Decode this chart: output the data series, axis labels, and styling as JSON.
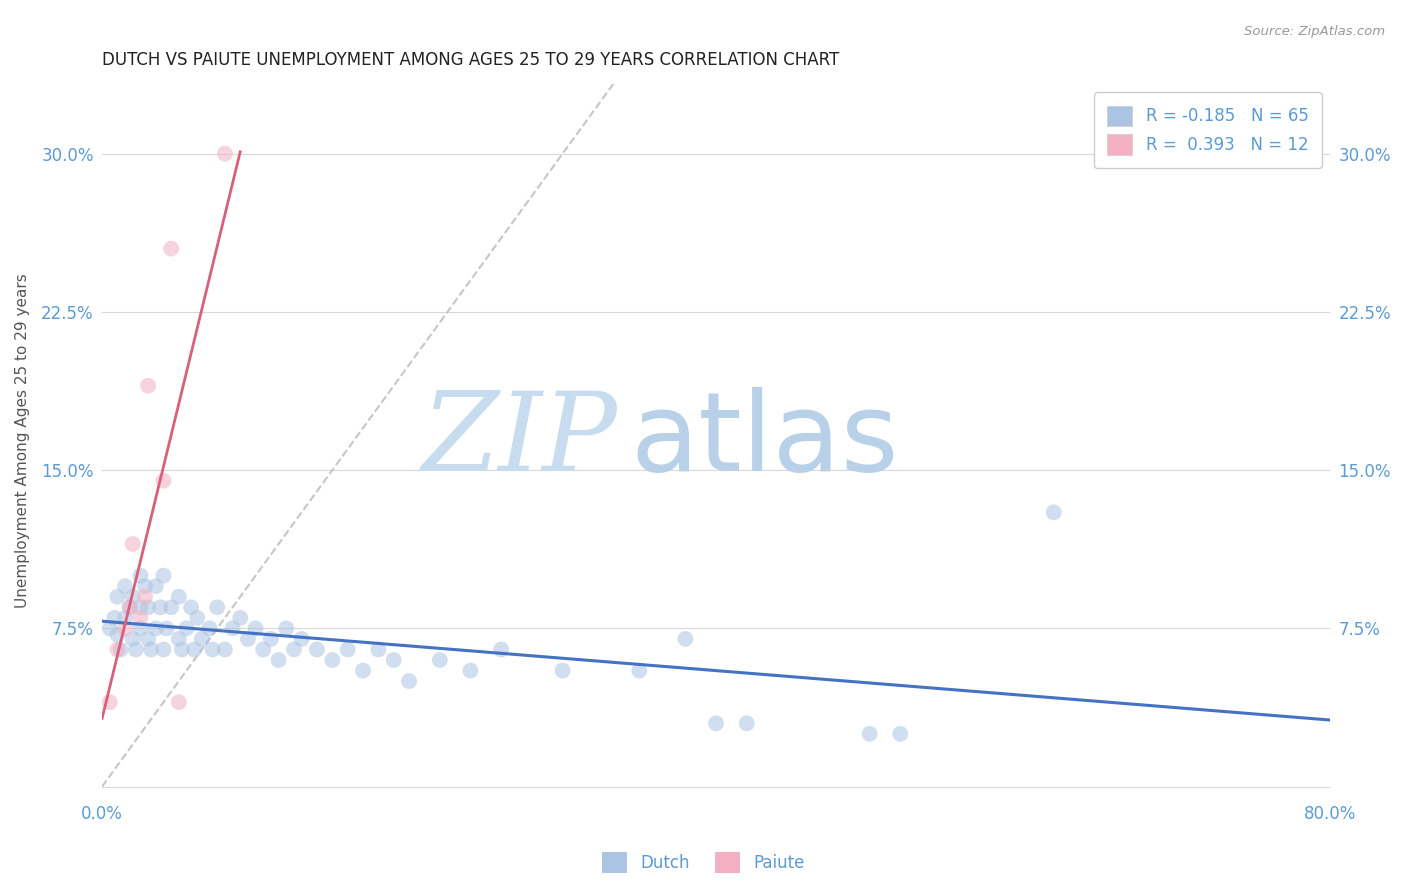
{
  "title": "DUTCH VS PAIUTE UNEMPLOYMENT AMONG AGES 25 TO 29 YEARS CORRELATION CHART",
  "source": "Source: ZipAtlas.com",
  "ylabel": "Unemployment Among Ages 25 to 29 years",
  "xlim": [
    0.0,
    0.8
  ],
  "ylim": [
    -0.005,
    0.333
  ],
  "xticks": [
    0.0,
    0.2,
    0.4,
    0.6,
    0.8
  ],
  "xticklabels": [
    "0.0%",
    "",
    "",
    "",
    "80.0%"
  ],
  "yticks": [
    0.0,
    0.075,
    0.15,
    0.225,
    0.3
  ],
  "yticklabels": [
    "",
    "7.5%",
    "15.0%",
    "22.5%",
    "30.0%"
  ],
  "legend_dutch_r": "R = -0.185",
  "legend_dutch_n": "N = 65",
  "legend_paiute_r": "R =  0.393",
  "legend_paiute_n": "N = 12",
  "dutch_color": "#aac4e2",
  "paiute_color": "#f2b0c2",
  "dutch_line_color": "#4472c4",
  "paiute_line_color": "#d9607a",
  "diagonal_color": "#c0c0c0",
  "grid_color": "#d8d8d8",
  "title_color": "#222222",
  "axis_color": "#5b9bd5",
  "background_color": "#ffffff",
  "watermark_zip_color": "#c8dcf0",
  "watermark_atlas_color": "#b8d0e8",
  "dutch_x": [
    0.005,
    0.008,
    0.01,
    0.01,
    0.012,
    0.015,
    0.015,
    0.018,
    0.02,
    0.02,
    0.022,
    0.025,
    0.025,
    0.025,
    0.028,
    0.03,
    0.03,
    0.032,
    0.035,
    0.035,
    0.038,
    0.04,
    0.04,
    0.042,
    0.045,
    0.05,
    0.05,
    0.052,
    0.055,
    0.058,
    0.06,
    0.062,
    0.065,
    0.07,
    0.072,
    0.075,
    0.08,
    0.085,
    0.09,
    0.095,
    0.1,
    0.105,
    0.11,
    0.115,
    0.12,
    0.125,
    0.13,
    0.14,
    0.15,
    0.16,
    0.17,
    0.18,
    0.19,
    0.2,
    0.22,
    0.24,
    0.26,
    0.3,
    0.35,
    0.38,
    0.4,
    0.42,
    0.5,
    0.52,
    0.62
  ],
  "dutch_y": [
    0.075,
    0.08,
    0.072,
    0.09,
    0.065,
    0.08,
    0.095,
    0.085,
    0.07,
    0.09,
    0.065,
    0.075,
    0.085,
    0.1,
    0.095,
    0.07,
    0.085,
    0.065,
    0.075,
    0.095,
    0.085,
    0.065,
    0.1,
    0.075,
    0.085,
    0.07,
    0.09,
    0.065,
    0.075,
    0.085,
    0.065,
    0.08,
    0.07,
    0.075,
    0.065,
    0.085,
    0.065,
    0.075,
    0.08,
    0.07,
    0.075,
    0.065,
    0.07,
    0.06,
    0.075,
    0.065,
    0.07,
    0.065,
    0.06,
    0.065,
    0.055,
    0.065,
    0.06,
    0.05,
    0.06,
    0.055,
    0.065,
    0.055,
    0.055,
    0.07,
    0.03,
    0.03,
    0.025,
    0.025,
    0.13
  ],
  "paiute_x": [
    0.005,
    0.01,
    0.015,
    0.018,
    0.02,
    0.025,
    0.028,
    0.03,
    0.04,
    0.045,
    0.05,
    0.08
  ],
  "paiute_y": [
    0.04,
    0.065,
    0.075,
    0.085,
    0.115,
    0.08,
    0.09,
    0.19,
    0.145,
    0.255,
    0.04,
    0.3
  ],
  "marker_size": 130,
  "marker_alpha": 0.55,
  "figsize": [
    14.06,
    8.92
  ],
  "dpi": 100
}
